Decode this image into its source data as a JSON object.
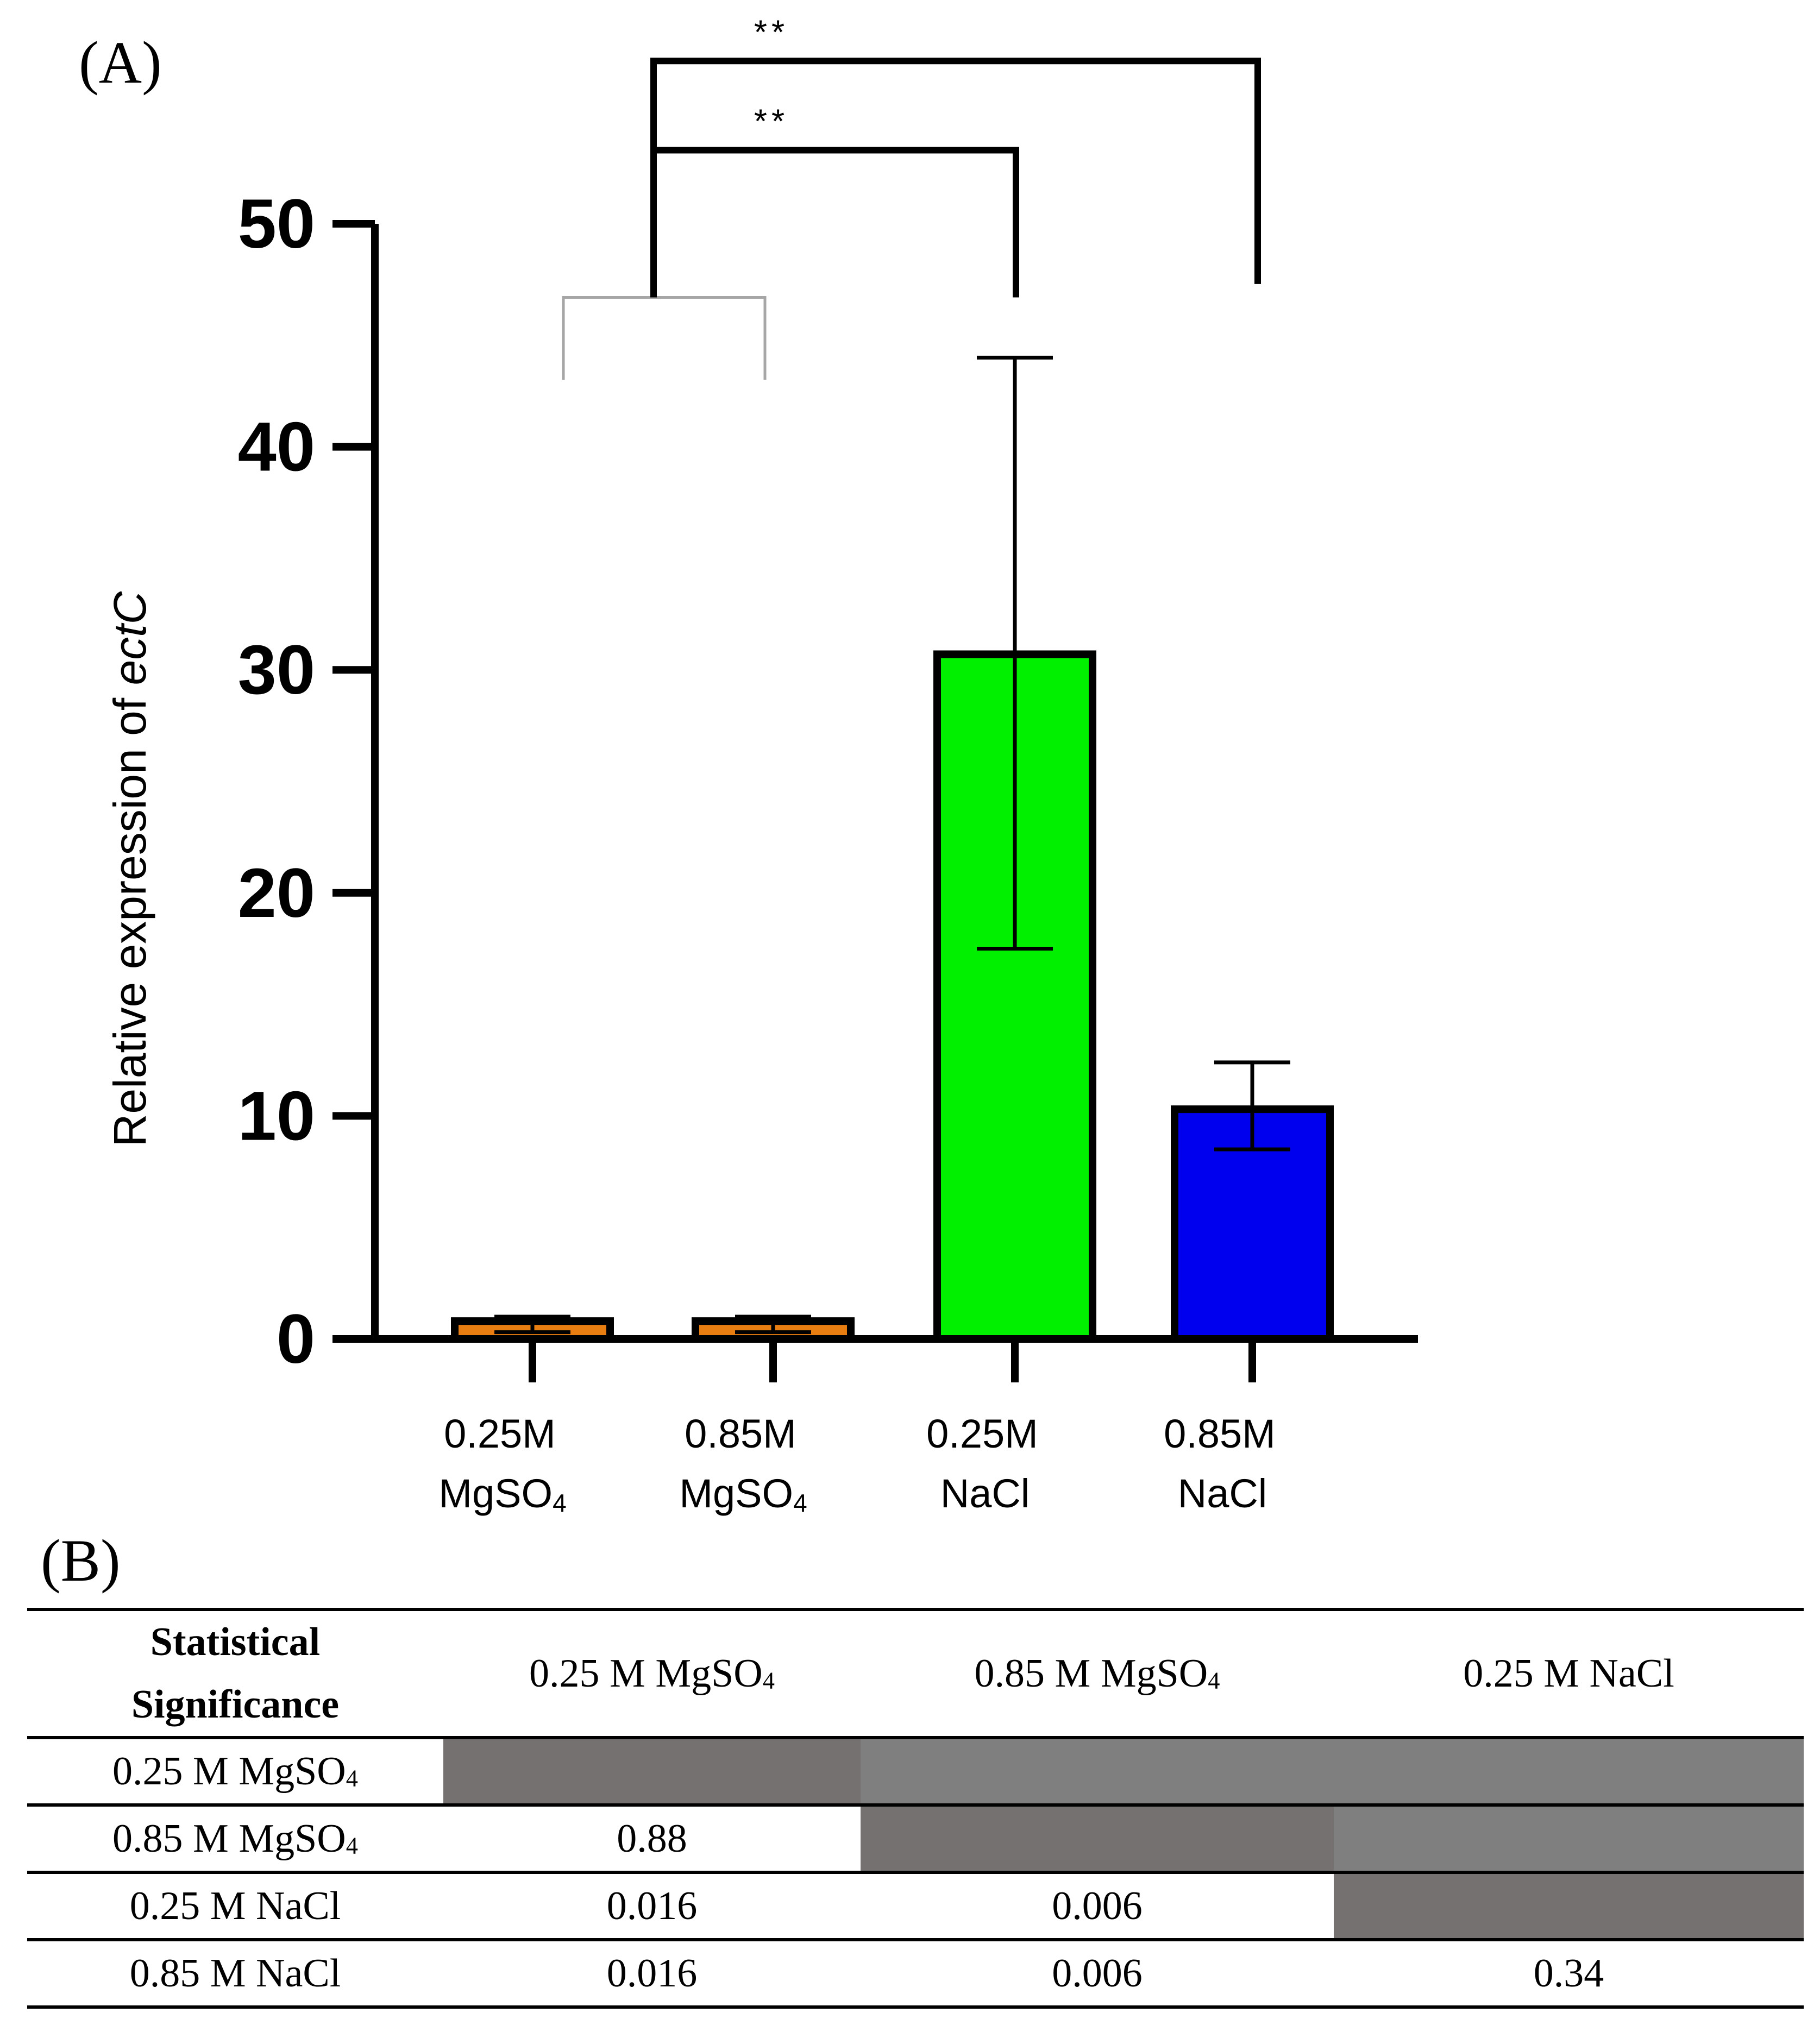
{
  "panel_labels": {
    "a": "(A)",
    "b": "(B)"
  },
  "chart_data": {
    "type": "bar",
    "title": "",
    "xlabel": "",
    "ylabel": "Relative expression of ",
    "ylabel_italic": "ectC",
    "ylim": [
      0,
      50
    ],
    "yticks": [
      "0",
      "10",
      "20",
      "30",
      "40",
      "50"
    ],
    "categories": [
      {
        "line1": "0.25M",
        "line2": "MgSO",
        "sub": "4"
      },
      {
        "line1": "0.85M",
        "line2": "MgSO",
        "sub": "4"
      },
      {
        "line1": "0.25M",
        "line2": "NaCl",
        "sub": ""
      },
      {
        "line1": "0.85M",
        "line2": "NaCl",
        "sub": ""
      }
    ],
    "values": [
      0.8,
      0.8,
      30.7,
      10.3
    ],
    "error_low": [
      0.3,
      0.3,
      17.5,
      8.5
    ],
    "error_high": [
      1.0,
      1.0,
      44.0,
      12.4
    ],
    "colors": [
      "#e87e12",
      "#e87e12",
      "#00f000",
      "#0000ee"
    ],
    "bracket_color": "#000000",
    "group_bracket_color": "#a6a6a6",
    "annotations": [
      {
        "label": "**",
        "from": "group",
        "to": 2,
        "level": 53.3
      },
      {
        "label": "**",
        "from": "group",
        "to": 3,
        "level": 57.3
      }
    ],
    "group_bracket": {
      "members": [
        0,
        1
      ],
      "top": 46.7,
      "bottom": 43.0
    }
  },
  "table": {
    "corner_line1": "Statistical",
    "corner_line2": "Significance",
    "columns": [
      {
        "text": "0.25 M MgSO",
        "sub": "4"
      },
      {
        "text": "0.85 M MgSO",
        "sub": "4"
      },
      {
        "text": "0.25 M NaCl",
        "sub": ""
      }
    ],
    "rows": [
      {
        "label": {
          "text": "0.25 M MgSO",
          "sub": "4"
        },
        "cells": [
          "",
          "",
          ""
        ]
      },
      {
        "label": {
          "text": "0.85 M MgSO",
          "sub": "4"
        },
        "cells": [
          "0.88",
          "",
          ""
        ]
      },
      {
        "label": {
          "text": "0.25 M NaCl",
          "sub": ""
        },
        "cells": [
          "0.016",
          "0.006",
          ""
        ]
      },
      {
        "label": {
          "text": "0.85 M NaCl",
          "sub": ""
        },
        "cells": [
          "0.016",
          "0.006",
          "0.34"
        ]
      }
    ]
  }
}
